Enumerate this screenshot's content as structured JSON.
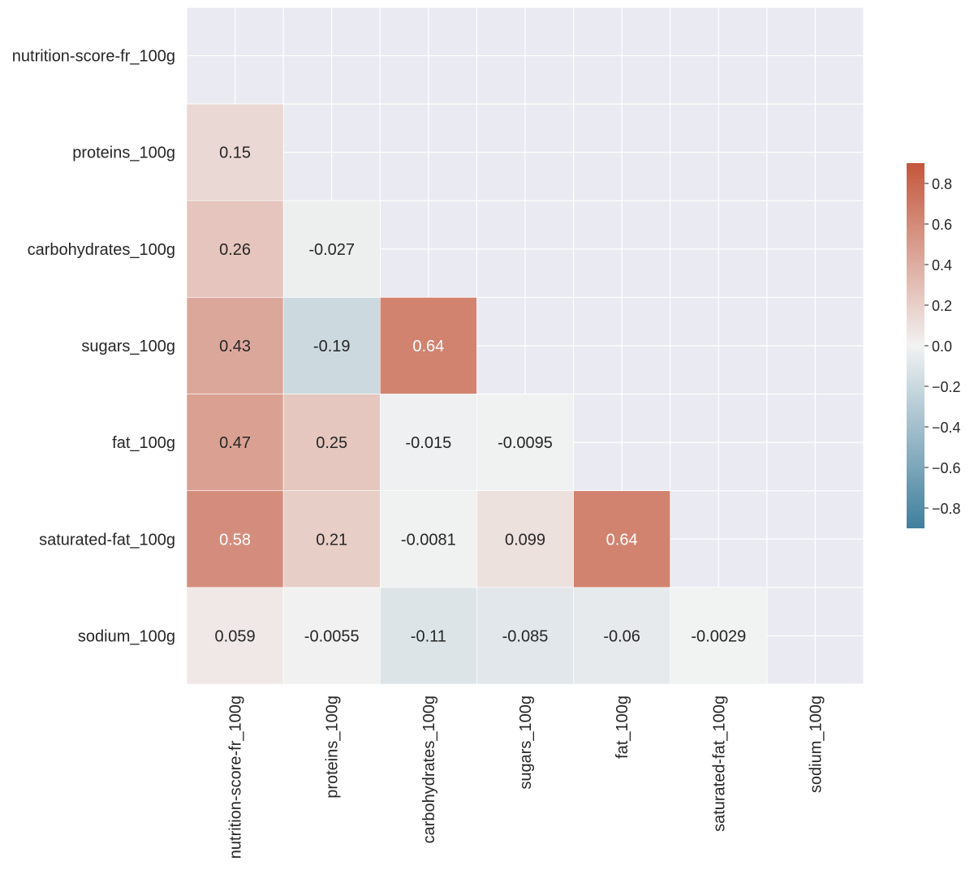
{
  "chart_data": {
    "type": "heatmap",
    "title": "",
    "xlabel": "",
    "ylabel": "",
    "mask": "upper-triangle-including-diagonal",
    "variables": [
      "nutrition-score-fr_100g",
      "proteins_100g",
      "carbohydrates_100g",
      "sugars_100g",
      "fat_100g",
      "saturated-fat_100g",
      "sodium_100g"
    ],
    "x_tick_labels": [
      "nutrition-score-fr_100g",
      "proteins_100g",
      "carbohydrates_100g",
      "sugars_100g",
      "fat_100g",
      "saturated-fat_100g",
      "sodium_100g"
    ],
    "y_tick_labels": [
      "nutrition-score-fr_100g",
      "proteins_100g",
      "carbohydrates_100g",
      "sugars_100g",
      "fat_100g",
      "saturated-fat_100g",
      "sodium_100g"
    ],
    "values": [
      [
        null,
        null,
        null,
        null,
        null,
        null,
        null
      ],
      [
        0.15,
        null,
        null,
        null,
        null,
        null,
        null
      ],
      [
        0.26,
        -0.027,
        null,
        null,
        null,
        null,
        null
      ],
      [
        0.43,
        -0.19,
        0.64,
        null,
        null,
        null,
        null
      ],
      [
        0.47,
        0.25,
        -0.015,
        -0.0095,
        null,
        null,
        null
      ],
      [
        0.58,
        0.21,
        -0.0081,
        0.099,
        0.64,
        null,
        null
      ],
      [
        0.059,
        -0.0055,
        -0.11,
        -0.085,
        -0.06,
        -0.0029,
        null
      ]
    ],
    "annotation_labels": [
      [
        null,
        null,
        null,
        null,
        null,
        null,
        null
      ],
      [
        "0.15",
        null,
        null,
        null,
        null,
        null,
        null
      ],
      [
        "0.26",
        "-0.027",
        null,
        null,
        null,
        null,
        null
      ],
      [
        "0.43",
        "-0.19",
        "0.64",
        null,
        null,
        null,
        null
      ],
      [
        "0.47",
        "0.25",
        "-0.015",
        "-0.0095",
        null,
        null,
        null
      ],
      [
        "0.58",
        "0.21",
        "-0.0081",
        "0.099",
        "0.64",
        null,
        null
      ],
      [
        "0.059",
        "-0.0055",
        "-0.11",
        "-0.085",
        "-0.06",
        "-0.0029",
        null
      ]
    ],
    "colorbar": {
      "vmin": -0.9,
      "vmax": 0.9,
      "ticks": [
        0.8,
        0.6,
        0.4,
        0.2,
        0.0,
        -0.2,
        -0.4,
        -0.6,
        -0.8
      ],
      "tick_labels": [
        "0.8",
        "0.6",
        "0.4",
        "0.2",
        "0.0",
        "−0.2",
        "−0.4",
        "−0.6",
        "−0.8"
      ],
      "placement": "right"
    },
    "colormap": {
      "negative_end": "#3f7f9d",
      "center": "#f2f2f2",
      "positive_end": "#c4563b"
    },
    "grid": true,
    "background_color": "#eaeaf2"
  }
}
